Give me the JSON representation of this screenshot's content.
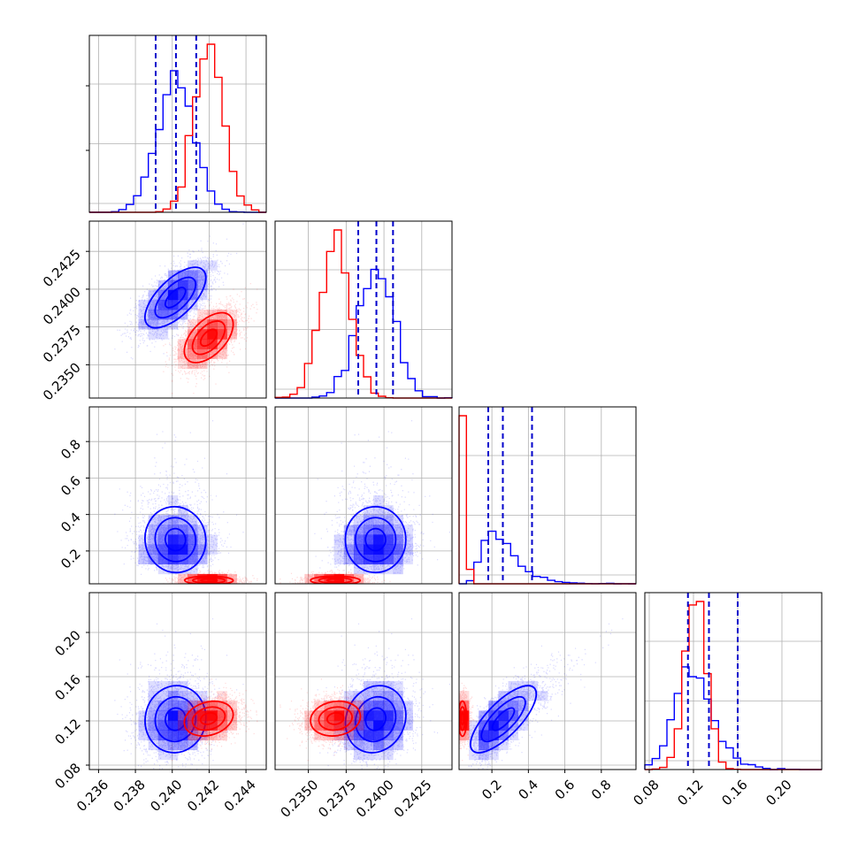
{
  "chart_data": {
    "type": "corner",
    "title": "",
    "grid": true,
    "legend": "none",
    "colors": {
      "series_a": "#0000ff",
      "series_b": "#ff0000",
      "quantile_line": "#0000cc",
      "grid": "#b0b0b0"
    },
    "series": [
      {
        "color": "#0000ff",
        "p1": {
          "mean": 0.2402,
          "std": 0.001
        },
        "p2": {
          "mean": 0.2395,
          "std": 0.0012
        },
        "p3": {
          "mode": 0.21,
          "min": 0.03,
          "max": 0.99
        },
        "p4": {
          "mean": 0.135,
          "std": 0.02
        },
        "quantiles": [
          [
            0.2391,
            0.2402,
            0.2413
          ],
          [
            0.2383,
            0.2395,
            0.2406
          ],
          [
            0.18,
            0.26,
            0.42
          ],
          [
            0.115,
            0.134,
            0.16
          ]
        ]
      },
      {
        "color": "#ff0000",
        "p1": {
          "mean": 0.242,
          "std": 0.0008
        },
        "p2": {
          "mean": 0.2368,
          "std": 0.001
        },
        "p3": {
          "mode": 0.04,
          "min": 0.0,
          "max": 0.12
        },
        "p4": {
          "mean": 0.122,
          "std": 0.01
        }
      }
    ],
    "axes": {
      "p1": {
        "range": [
          0.2355,
          0.2451
        ],
        "ticks": [
          "0.236",
          "0.238",
          "0.240",
          "0.242",
          "0.244"
        ],
        "values": [
          0.236,
          0.238,
          0.24,
          0.242,
          0.244
        ]
      },
      "p2": {
        "range": [
          0.2328,
          0.2445
        ],
        "ticks": [
          "0.2350",
          "0.2375",
          "0.2400",
          "0.2425"
        ],
        "values": [
          0.235,
          0.2375,
          0.24,
          0.2425
        ]
      },
      "p3": {
        "range": [
          0.02,
          0.99
        ],
        "ticks": [
          "0.2",
          "0.4",
          "0.6",
          "0.8"
        ],
        "values": [
          0.2,
          0.4,
          0.6,
          0.8
        ]
      },
      "p4": {
        "range": [
          0.076,
          0.236
        ],
        "ticks": [
          "0.08",
          "0.12",
          "0.16",
          "0.20"
        ],
        "values": [
          0.08,
          0.12,
          0.16,
          0.2
        ]
      }
    },
    "xlabels": [
      "",
      "",
      "",
      ""
    ],
    "ylabels": [
      "",
      "",
      "",
      ""
    ]
  }
}
